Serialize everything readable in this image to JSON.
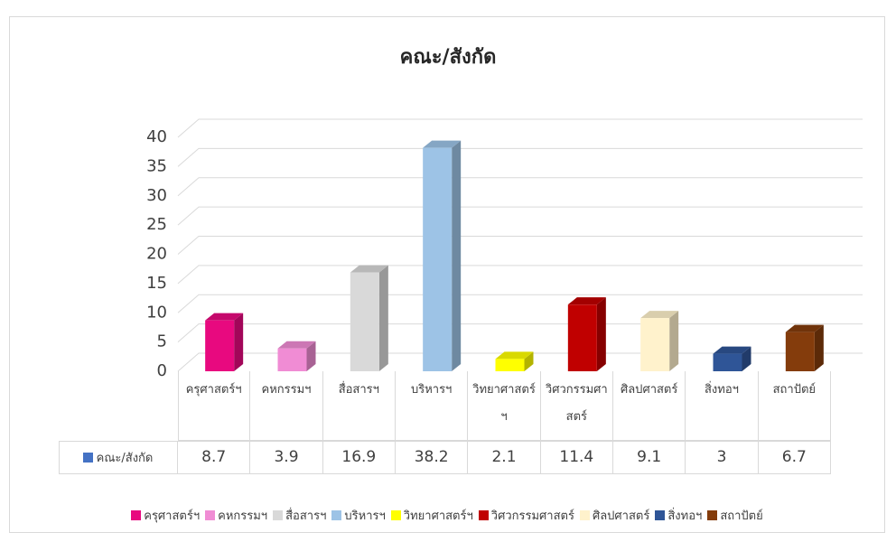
{
  "chart_data": {
    "type": "bar3d",
    "title": "คณะ/สังกัด",
    "series_name": "คณะ/สังกัด",
    "series_color": "#4472c4",
    "categories": [
      "ครุศาสตร์ฯ",
      "คหกรรมฯ",
      "สื่อสารฯ",
      "บริหารฯ",
      "วิทยาศาสตร์ฯ",
      "วิศวกรรมศาสตร์",
      "ศิลปศาสตร์",
      "สิ่งทอฯ",
      "สถาปัตย์"
    ],
    "values": [
      8.7,
      3.9,
      16.9,
      38.2,
      2.1,
      11.4,
      9.1,
      3,
      6.7
    ],
    "colors": [
      "#e8097f",
      "#f08cd4",
      "#d9d9d9",
      "#9dc3e6",
      "#ffff00",
      "#c00000",
      "#fff2cc",
      "#2f5597",
      "#843c0c"
    ],
    "ylim": [
      0,
      40
    ],
    "yticks": [
      0,
      5,
      10,
      15,
      20,
      25,
      30,
      35,
      40
    ],
    "grid": true
  }
}
